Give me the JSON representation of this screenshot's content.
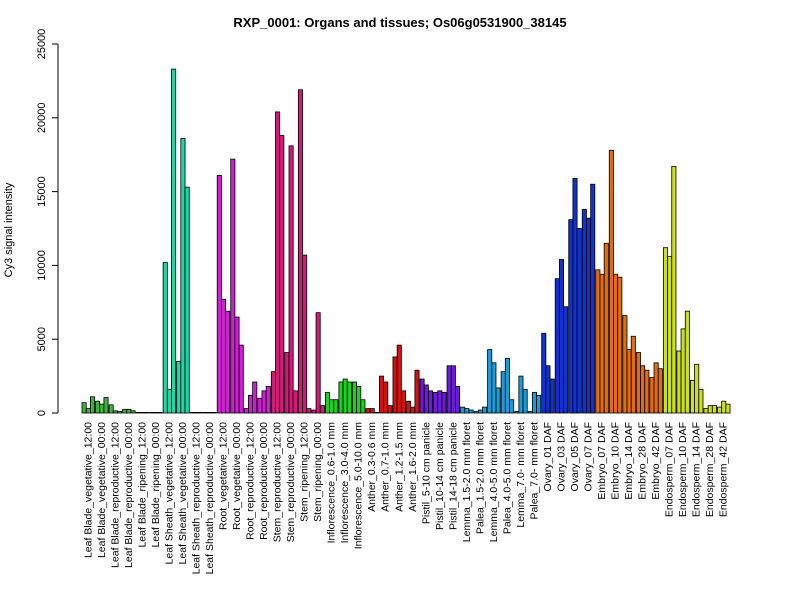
{
  "chart_data": {
    "type": "bar",
    "title": "RXP_0001: Organs and tissues; Os06g0531900_38145",
    "ylabel": "Cy3 signal intensity",
    "xlabel": "",
    "ylim": [
      0,
      25000
    ],
    "y_ticks": [
      0,
      5000,
      10000,
      15000,
      20000,
      25000
    ],
    "grid": false,
    "categories": [
      "Leaf Blade_vegetative_12:00",
      "Leaf Blade_vegetative_00:00",
      "Leaf Blade_reproductive_12:00",
      "Leaf Blade_reproductive_00:00",
      "Leaf Blade_ripening_12:00",
      "Leaf Blade_ripening_00:00",
      "Leaf Sheath_vegetative_12:00",
      "Leaf Sheath_vegetative_00:00",
      "Leaf Sheath_reproductive_12:00",
      "Leaf Sheath_reproductive_00:00",
      "Root_vegetative_12:00",
      "Root_vegetative_00:00",
      "Root_reproductive_12:00",
      "Root_reproductive_00:00",
      "Stem_reproductive_12:00",
      "Stem_reproductive_00:00",
      "Stem_ripening_12:00",
      "Stem_ripening_00:00",
      "Inflorescence_0.6-1.0 mm",
      "Inflorescence_3.0-4.0 mm",
      "Inflorescence_5.0-10.0 mm",
      "Anther_0.3-0.6 mm",
      "Anther_0.7-1.0 mm",
      "Anther_1.2-1.5 mm",
      "Anther_1.6-2.0 mm",
      "Pistil_5-10 cm panicle",
      "Pistil_10-14 cm panicle",
      "Pistil_14-18 cm panicle",
      "Lemma_1.5-2.0 mm floret",
      "Palea_1.5-2.0 mm floret",
      "Lemma_4.0-5.0 mm floret",
      "Palea_4.0-5.0 mm floret",
      "Lemma_7.0- mm floret",
      "Palea_7.0- mm floret",
      "Ovary_01 DAF",
      "Ovary_03 DAF",
      "Ovary_05 DAF",
      "Ovary_07 DAF",
      "Embryo_07 DAF",
      "Embryo_10 DAF",
      "Embryo_14 DAF",
      "Embryo_28 DAF",
      "Embryo_42 DAF",
      "Endosperm_07 DAF",
      "Endosperm_10 DAF",
      "Endosperm_14 DAF",
      "Endosperm_28 DAF",
      "Endosperm_42 DAF"
    ],
    "replicate_values": [
      [
        700,
        300,
        1100
      ],
      [
        800,
        600,
        1050
      ],
      [
        550,
        150,
        100
      ],
      [
        250,
        250,
        150
      ],
      [
        30,
        30,
        40
      ],
      [
        20,
        30,
        20
      ],
      [
        10200,
        1600,
        23300
      ],
      [
        3500,
        18600,
        15300
      ],
      [
        30,
        20,
        20
      ],
      [
        30,
        20,
        30
      ],
      [
        16100,
        7700,
        6900
      ],
      [
        17200,
        6500,
        4600
      ],
      [
        300,
        1200,
        2100
      ],
      [
        1000,
        1500,
        1800
      ],
      [
        2800,
        20400,
        18800
      ],
      [
        4100,
        18100,
        1500
      ],
      [
        21900,
        10700,
        300
      ],
      [
        200,
        6800,
        500
      ],
      [
        1400,
        900,
        900
      ],
      [
        2100,
        2300,
        2100
      ],
      [
        2100,
        1800,
        900
      ],
      [
        300,
        300,
        0
      ],
      [
        2500,
        2100,
        500
      ],
      [
        3800,
        4600,
        1500
      ],
      [
        800,
        400,
        2900
      ],
      [
        2300,
        1900,
        1500
      ],
      [
        1400,
        1500,
        1400
      ],
      [
        3200,
        3200,
        1800
      ],
      [
        400,
        300,
        200
      ],
      [
        100,
        200,
        400
      ],
      [
        4300,
        3400,
        1700
      ],
      [
        2800,
        3700,
        900
      ],
      [
        100,
        2500,
        1600
      ],
      [
        100,
        1400,
        1200
      ],
      [
        5400,
        3200,
        2300
      ],
      [
        9100,
        10400,
        7200
      ],
      [
        13100,
        15900,
        12500
      ],
      [
        13800,
        13200,
        15500
      ],
      [
        9700,
        9400,
        11500
      ],
      [
        17800,
        9400,
        9200
      ],
      [
        6600,
        4300,
        5200
      ],
      [
        4100,
        3200,
        2900
      ],
      [
        2400,
        3400,
        3000
      ],
      [
        11200,
        10600,
        16700
      ],
      [
        4200,
        5700,
        6900
      ],
      [
        2200,
        3300,
        1600
      ],
      [
        300,
        500,
        500
      ],
      [
        400,
        800,
        600
      ]
    ],
    "colors": [
      "#3eb43e",
      "#3eb43e",
      "#3eb43e",
      "#3eb43e",
      "#3eb43e",
      "#3eb43e",
      "#1fd6a4",
      "#1fd6a4",
      "#1fd6a4",
      "#1fd6a4",
      "#cf1fd3",
      "#cf1fd3",
      "#cf1fd3",
      "#cf1fd3",
      "#d41a78",
      "#d41a78",
      "#d41a78",
      "#d41a78",
      "#1ed11e",
      "#1ed11e",
      "#1ed11e",
      "#d41212",
      "#d41212",
      "#d41212",
      "#d41212",
      "#6a1cd6",
      "#6a1cd6",
      "#6a1cd6",
      "#1c9bd9",
      "#1c9bd9",
      "#1c9bd9",
      "#1c9bd9",
      "#1c9bd9",
      "#1c9bd9",
      "#1232d0",
      "#1232d0",
      "#1232d0",
      "#1232d0",
      "#e36b10",
      "#e36b10",
      "#e36b10",
      "#e36b10",
      "#e36b10",
      "#cbe01e",
      "#cbe01e",
      "#cbe01e",
      "#cbe01e",
      "#cbe01e"
    ],
    "bar_border_color": "#000000"
  }
}
